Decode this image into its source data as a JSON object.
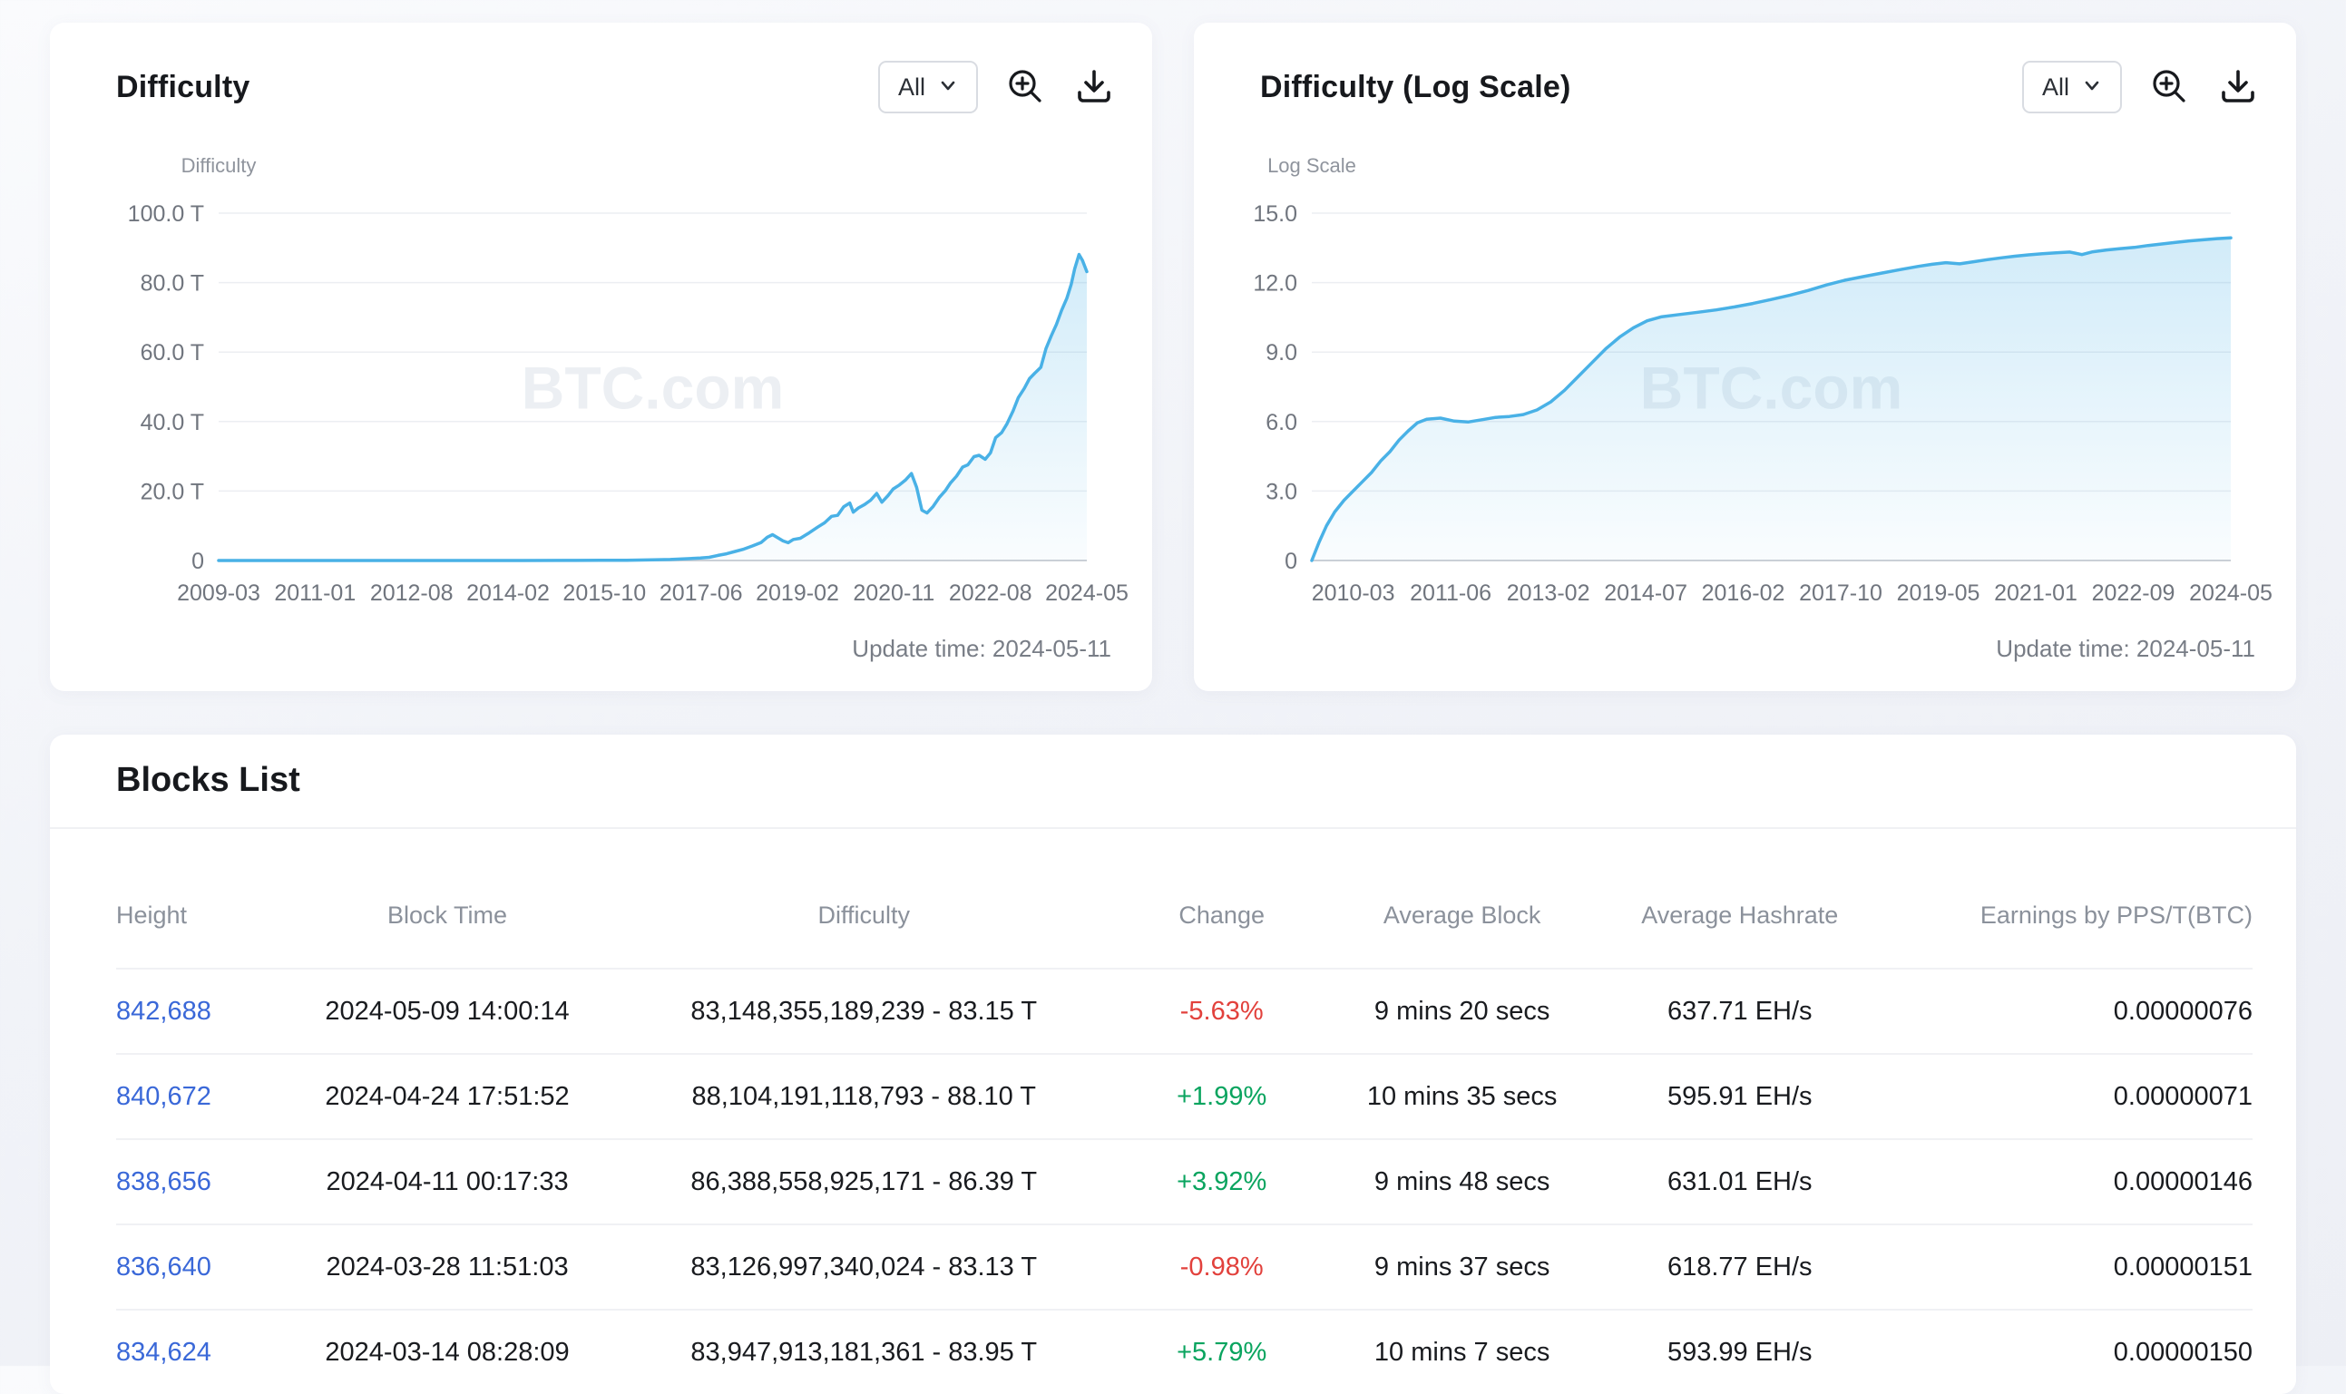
{
  "colors": {
    "line": "#49b1e6",
    "positive": "#0aa45f",
    "negative": "#e2413c",
    "link": "#3a68d8",
    "watermark": "#dde3ea"
  },
  "chart_data": [
    {
      "type": "area",
      "title": "Difficulty",
      "range_label": "All",
      "axis_caption": "Difficulty",
      "watermark": "BTC.com",
      "update_time": "Update time: 2024-05-11",
      "ylim": [
        0,
        100
      ],
      "grid": true,
      "legend": "none",
      "line_color": "#49b1e6",
      "yticks": [
        {
          "v": 0,
          "label": "0"
        },
        {
          "v": 20,
          "label": "20.0 T"
        },
        {
          "v": 40,
          "label": "40.0 T"
        },
        {
          "v": 60,
          "label": "60.0 T"
        },
        {
          "v": 80,
          "label": "80.0 T"
        },
        {
          "v": 100,
          "label": "100.0 T"
        }
      ],
      "xticks": [
        "2009-03",
        "2011-01",
        "2012-08",
        "2014-02",
        "2015-10",
        "2017-06",
        "2019-02",
        "2020-11",
        "2022-08",
        "2024-05"
      ],
      "xtick_range": [
        0,
        1
      ],
      "points": [
        [
          0,
          0
        ],
        [
          0.05,
          0
        ],
        [
          0.1,
          0
        ],
        [
          0.15,
          0
        ],
        [
          0.2,
          0.001
        ],
        [
          0.25,
          0.003
        ],
        [
          0.3,
          0.006
        ],
        [
          0.35,
          0.012
        ],
        [
          0.4,
          0.03
        ],
        [
          0.44,
          0.06
        ],
        [
          0.47,
          0.09
        ],
        [
          0.5,
          0.18
        ],
        [
          0.52,
          0.3
        ],
        [
          0.54,
          0.52
        ],
        [
          0.555,
          0.71
        ],
        [
          0.565,
          0.92
        ],
        [
          0.575,
          1.45
        ],
        [
          0.585,
          1.93
        ],
        [
          0.595,
          2.6
        ],
        [
          0.605,
          3.3
        ],
        [
          0.615,
          4.2
        ],
        [
          0.625,
          5.2
        ],
        [
          0.632,
          6.7
        ],
        [
          0.638,
          7.45
        ],
        [
          0.645,
          6.4
        ],
        [
          0.65,
          5.65
        ],
        [
          0.656,
          5.11
        ],
        [
          0.662,
          6.07
        ],
        [
          0.67,
          6.39
        ],
        [
          0.68,
          7.93
        ],
        [
          0.69,
          9.61
        ],
        [
          0.698,
          10.85
        ],
        [
          0.706,
          12.72
        ],
        [
          0.713,
          13.01
        ],
        [
          0.72,
          15.47
        ],
        [
          0.727,
          16.55
        ],
        [
          0.731,
          13.91
        ],
        [
          0.737,
          15.14
        ],
        [
          0.744,
          16.1
        ],
        [
          0.751,
          17.35
        ],
        [
          0.758,
          19.31
        ],
        [
          0.764,
          16.79
        ],
        [
          0.771,
          18.67
        ],
        [
          0.777,
          20.61
        ],
        [
          0.784,
          21.72
        ],
        [
          0.791,
          23.14
        ],
        [
          0.798,
          25.05
        ],
        [
          0.804,
          21.05
        ],
        [
          0.81,
          14.5
        ],
        [
          0.816,
          13.67
        ],
        [
          0.823,
          15.56
        ],
        [
          0.83,
          18.12
        ],
        [
          0.837,
          20.08
        ],
        [
          0.843,
          22.34
        ],
        [
          0.85,
          24.27
        ],
        [
          0.857,
          26.9
        ],
        [
          0.863,
          27.55
        ],
        [
          0.87,
          29.9
        ],
        [
          0.876,
          30.28
        ],
        [
          0.883,
          29.15
        ],
        [
          0.889,
          30.98
        ],
        [
          0.895,
          35.36
        ],
        [
          0.902,
          36.84
        ],
        [
          0.908,
          39.35
        ],
        [
          0.915,
          43.05
        ],
        [
          0.921,
          46.84
        ],
        [
          0.928,
          49.55
        ],
        [
          0.934,
          52.35
        ],
        [
          0.94,
          53.91
        ],
        [
          0.947,
          55.62
        ],
        [
          0.953,
          61.03
        ],
        [
          0.959,
          64.68
        ],
        [
          0.965,
          67.96
        ],
        [
          0.971,
          72.01
        ],
        [
          0.977,
          75.5
        ],
        [
          0.982,
          79.5
        ],
        [
          0.986,
          83.95
        ],
        [
          0.991,
          88.1
        ],
        [
          0.995,
          86.4
        ],
        [
          1,
          83.15
        ]
      ]
    },
    {
      "type": "area",
      "title": "Difficulty (Log Scale)",
      "range_label": "All",
      "axis_caption": "Log Scale",
      "watermark": "BTC.com",
      "update_time": "Update time: 2024-05-11",
      "ylim": [
        0,
        15
      ],
      "grid": true,
      "legend": "none",
      "line_color": "#49b1e6",
      "yticks": [
        {
          "v": 0,
          "label": "0"
        },
        {
          "v": 3,
          "label": "3.0"
        },
        {
          "v": 6,
          "label": "6.0"
        },
        {
          "v": 9,
          "label": "9.0"
        },
        {
          "v": 12,
          "label": "12.0"
        },
        {
          "v": 15,
          "label": "15.0"
        }
      ],
      "xticks": [
        "2010-03",
        "2011-06",
        "2013-02",
        "2014-07",
        "2016-02",
        "2017-10",
        "2019-05",
        "2021-01",
        "2022-09",
        "2024-05"
      ],
      "xtick_range": [
        0.045,
        1
      ],
      "points": [
        [
          0,
          0
        ],
        [
          0.008,
          0.8
        ],
        [
          0.016,
          1.5
        ],
        [
          0.025,
          2.1
        ],
        [
          0.035,
          2.6
        ],
        [
          0.045,
          3.0
        ],
        [
          0.055,
          3.4
        ],
        [
          0.065,
          3.8
        ],
        [
          0.075,
          4.3
        ],
        [
          0.085,
          4.7
        ],
        [
          0.095,
          5.2
        ],
        [
          0.105,
          5.6
        ],
        [
          0.115,
          5.95
        ],
        [
          0.125,
          6.1
        ],
        [
          0.14,
          6.15
        ],
        [
          0.155,
          6.02
        ],
        [
          0.17,
          5.98
        ],
        [
          0.185,
          6.08
        ],
        [
          0.2,
          6.18
        ],
        [
          0.215,
          6.22
        ],
        [
          0.23,
          6.3
        ],
        [
          0.245,
          6.5
        ],
        [
          0.26,
          6.85
        ],
        [
          0.275,
          7.35
        ],
        [
          0.29,
          7.95
        ],
        [
          0.305,
          8.55
        ],
        [
          0.32,
          9.15
        ],
        [
          0.335,
          9.65
        ],
        [
          0.35,
          10.05
        ],
        [
          0.365,
          10.35
        ],
        [
          0.38,
          10.52
        ],
        [
          0.4,
          10.62
        ],
        [
          0.42,
          10.72
        ],
        [
          0.44,
          10.82
        ],
        [
          0.46,
          10.95
        ],
        [
          0.48,
          11.1
        ],
        [
          0.5,
          11.27
        ],
        [
          0.52,
          11.45
        ],
        [
          0.54,
          11.66
        ],
        [
          0.56,
          11.9
        ],
        [
          0.58,
          12.1
        ],
        [
          0.6,
          12.26
        ],
        [
          0.62,
          12.41
        ],
        [
          0.64,
          12.56
        ],
        [
          0.66,
          12.7
        ],
        [
          0.675,
          12.79
        ],
        [
          0.69,
          12.86
        ],
        [
          0.705,
          12.81
        ],
        [
          0.72,
          12.9
        ],
        [
          0.735,
          12.99
        ],
        [
          0.75,
          13.07
        ],
        [
          0.765,
          13.14
        ],
        [
          0.78,
          13.2
        ],
        [
          0.795,
          13.25
        ],
        [
          0.81,
          13.29
        ],
        [
          0.825,
          13.32
        ],
        [
          0.838,
          13.21
        ],
        [
          0.85,
          13.33
        ],
        [
          0.865,
          13.41
        ],
        [
          0.88,
          13.47
        ],
        [
          0.895,
          13.52
        ],
        [
          0.91,
          13.6
        ],
        [
          0.925,
          13.67
        ],
        [
          0.94,
          13.74
        ],
        [
          0.955,
          13.8
        ],
        [
          0.97,
          13.85
        ],
        [
          0.985,
          13.9
        ],
        [
          1,
          13.93
        ]
      ]
    }
  ],
  "blocks": {
    "title": "Blocks List",
    "columns": [
      "Height",
      "Block Time",
      "Difficulty",
      "Change",
      "Average Block",
      "Average Hashrate",
      "Earnings by PPS/T(BTC)"
    ],
    "rows": [
      {
        "height": "842,688",
        "time": "2024-05-09 14:00:14",
        "difficulty": "83,148,355,189,239 - 83.15 T",
        "change": "-5.63%",
        "avg_block": "9 mins 20 secs",
        "avg_hashrate": "637.71 EH/s",
        "earnings": "0.00000076"
      },
      {
        "height": "840,672",
        "time": "2024-04-24 17:51:52",
        "difficulty": "88,104,191,118,793 - 88.10 T",
        "change": "+1.99%",
        "avg_block": "10 mins 35 secs",
        "avg_hashrate": "595.91 EH/s",
        "earnings": "0.00000071"
      },
      {
        "height": "838,656",
        "time": "2024-04-11 00:17:33",
        "difficulty": "86,388,558,925,171 - 86.39 T",
        "change": "+3.92%",
        "avg_block": "9 mins 48 secs",
        "avg_hashrate": "631.01 EH/s",
        "earnings": "0.00000146"
      },
      {
        "height": "836,640",
        "time": "2024-03-28 11:51:03",
        "difficulty": "83,126,997,340,024 - 83.13 T",
        "change": "-0.98%",
        "avg_block": "9 mins 37 secs",
        "avg_hashrate": "618.77 EH/s",
        "earnings": "0.00000151"
      },
      {
        "height": "834,624",
        "time": "2024-03-14 08:28:09",
        "difficulty": "83,947,913,181,361 - 83.95 T",
        "change": "+5.79%",
        "avg_block": "10 mins 7 secs",
        "avg_hashrate": "593.99 EH/s",
        "earnings": "0.00000150"
      }
    ]
  }
}
